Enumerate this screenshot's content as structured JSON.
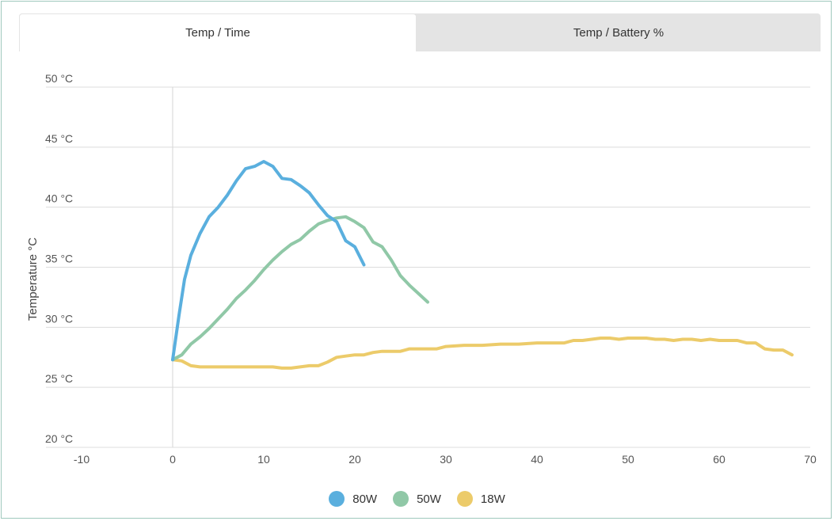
{
  "tabs": [
    {
      "label": "Temp / Time",
      "active": true
    },
    {
      "label": "Temp / Battery %",
      "active": false
    }
  ],
  "chart_data": {
    "type": "line",
    "ylabel": "Temperature °C",
    "xlabel": "",
    "xlim": [
      -10,
      70
    ],
    "ylim": [
      20,
      50
    ],
    "x_ticks": [
      "-10",
      "0",
      "10",
      "20",
      "30",
      "40",
      "50",
      "60",
      "70"
    ],
    "y_ticks": [
      "50 °C",
      "45 °C",
      "40 °C",
      "35 °C",
      "30 °C",
      "25 °C",
      "20 °C"
    ],
    "grid": "horizontal",
    "legend_position": "bottom",
    "series": [
      {
        "name": "80W",
        "color": "#5aafde",
        "x": [
          0,
          0.7,
          1.3,
          2,
          3,
          4,
          5,
          6,
          7,
          8,
          9,
          10,
          11,
          12,
          13,
          14,
          15,
          16,
          17,
          18,
          19,
          20,
          21
        ],
        "y": [
          27.3,
          31,
          34,
          36,
          37.8,
          39.2,
          40,
          41,
          42.2,
          43.2,
          43.4,
          43.8,
          43.4,
          42.4,
          42.3,
          41.8,
          41.2,
          40.2,
          39.3,
          38.8,
          37.2,
          36.7,
          35.2
        ]
      },
      {
        "name": "50W",
        "color": "#90c8a7",
        "x": [
          0,
          1,
          2,
          3,
          4,
          5,
          6,
          7,
          8,
          9,
          10,
          11,
          12,
          13,
          14,
          15,
          16,
          17,
          18,
          19,
          20,
          21,
          22,
          23,
          24,
          25,
          26,
          27,
          28
        ],
        "y": [
          27.3,
          27.7,
          28.6,
          29.2,
          29.9,
          30.7,
          31.5,
          32.4,
          33.1,
          33.9,
          34.8,
          35.6,
          36.3,
          36.9,
          37.3,
          38,
          38.6,
          38.9,
          39.1,
          39.2,
          38.8,
          38.3,
          37.1,
          36.7,
          35.6,
          34.3,
          33.5,
          32.8,
          32.1
        ]
      },
      {
        "name": "18W",
        "color": "#eccb6a",
        "x": [
          0,
          1,
          2,
          3,
          5,
          8,
          11,
          12,
          13,
          14,
          15,
          16,
          17,
          18,
          19,
          20,
          21,
          22,
          23,
          24,
          25,
          26,
          27,
          28,
          29,
          30,
          32,
          34,
          36,
          38,
          40,
          42,
          43,
          44,
          45,
          46,
          47,
          48,
          49,
          50,
          51,
          52,
          53,
          54,
          55,
          56,
          57,
          58,
          59,
          60,
          61,
          62,
          63,
          64,
          65,
          66,
          67,
          68
        ],
        "y": [
          27.3,
          27.2,
          26.8,
          26.7,
          26.7,
          26.7,
          26.7,
          26.6,
          26.6,
          26.7,
          26.8,
          26.8,
          27.1,
          27.5,
          27.6,
          27.7,
          27.7,
          27.9,
          28,
          28,
          28,
          28.2,
          28.2,
          28.2,
          28.2,
          28.4,
          28.5,
          28.5,
          28.6,
          28.6,
          28.7,
          28.7,
          28.7,
          28.9,
          28.9,
          29,
          29.1,
          29.1,
          29,
          29.1,
          29.1,
          29.1,
          29,
          29,
          28.9,
          29,
          29,
          28.9,
          29,
          28.9,
          28.9,
          28.9,
          28.7,
          28.7,
          28.2,
          28.1,
          28.1,
          27.7
        ]
      }
    ]
  }
}
